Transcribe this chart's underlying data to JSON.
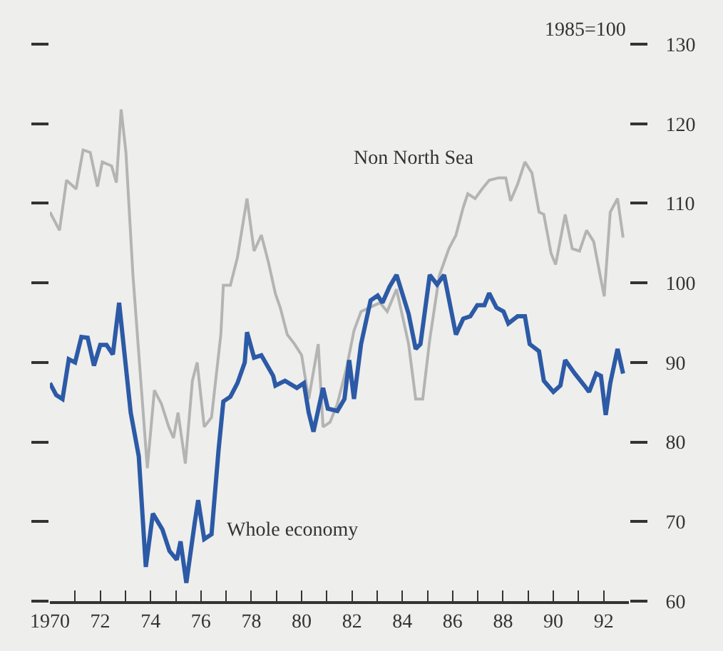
{
  "chart_data": {
    "type": "line",
    "annotations": [
      "1985=100"
    ],
    "xlim": [
      1970,
      1993
    ],
    "xticks": [
      1970,
      {
        "value": 1971,
        "label": null
      },
      {
        "value": 1972,
        "label": "72"
      },
      {
        "value": 1973,
        "label": null
      },
      {
        "value": 1974,
        "label": "74"
      },
      {
        "value": 1975,
        "label": null
      },
      {
        "value": 1976,
        "label": "76"
      },
      {
        "value": 1977,
        "label": null
      },
      {
        "value": 1978,
        "label": "78"
      },
      {
        "value": 1979,
        "label": null
      },
      {
        "value": 1980,
        "label": "80"
      },
      {
        "value": 1981,
        "label": null
      },
      {
        "value": 1982,
        "label": "82"
      },
      {
        "value": 1983,
        "label": null
      },
      {
        "value": 1984,
        "label": "84"
      },
      {
        "value": 1985,
        "label": null
      },
      {
        "value": 1986,
        "label": "86"
      },
      {
        "value": 1987,
        "label": null
      },
      {
        "value": 1988,
        "label": "88"
      },
      {
        "value": 1989,
        "label": null
      },
      {
        "value": 1990,
        "label": "90"
      },
      {
        "value": 1991,
        "label": null
      },
      {
        "value": 1992,
        "label": "92"
      }
    ],
    "ylim": [
      60,
      130
    ],
    "yticks": [
      60,
      70,
      80,
      90,
      100,
      110,
      120,
      130
    ],
    "grid": false,
    "legend": false,
    "marker": "none",
    "line_style": "solid",
    "series": [
      {
        "name": "Non North Sea",
        "color": "#b4b4b4",
        "x": [
          1970.0,
          1970.38,
          1970.66,
          1971.04,
          1971.32,
          1971.6,
          1971.89,
          1972.08,
          1972.45,
          1972.64,
          1972.83,
          1973.02,
          1973.3,
          1973.87,
          1974.15,
          1974.43,
          1974.72,
          1974.91,
          1975.09,
          1975.38,
          1975.66,
          1975.85,
          1976.13,
          1976.42,
          1976.79,
          1976.89,
          1977.17,
          1977.45,
          1977.83,
          1978.11,
          1978.4,
          1978.68,
          1978.96,
          1979.15,
          1979.43,
          1979.72,
          1980.0,
          1980.28,
          1980.66,
          1980.85,
          1981.13,
          1981.42,
          1981.79,
          1982.08,
          1982.36,
          1983.11,
          1983.4,
          1983.77,
          1984.25,
          1984.53,
          1984.81,
          1985.09,
          1985.47,
          1985.85,
          1986.13,
          1986.42,
          1986.6,
          1986.89,
          1987.17,
          1987.45,
          1987.83,
          1988.11,
          1988.3,
          1988.58,
          1988.87,
          1989.15,
          1989.43,
          1989.62,
          1989.91,
          1990.09,
          1990.47,
          1990.75,
          1991.04,
          1991.32,
          1991.6,
          1992.02,
          1992.26,
          1992.55,
          1992.77
        ],
        "values": [
          108.9,
          106.6,
          112.9,
          111.8,
          116.7,
          116.4,
          112.1,
          115.2,
          114.7,
          112.6,
          121.8,
          116.4,
          100.9,
          76.7,
          86.5,
          84.8,
          81.9,
          80.5,
          83.7,
          77.3,
          87.7,
          90.0,
          81.9,
          83.1,
          93.5,
          99.7,
          99.7,
          103.2,
          110.6,
          104.0,
          106.0,
          102.6,
          98.6,
          96.9,
          93.5,
          92.3,
          90.9,
          85.4,
          92.3,
          81.9,
          82.5,
          84.8,
          89.4,
          94.0,
          96.4,
          97.5,
          96.4,
          99.2,
          92.3,
          85.4,
          85.4,
          92.9,
          100.9,
          104.3,
          106.0,
          109.5,
          111.2,
          110.6,
          111.8,
          112.9,
          113.2,
          113.2,
          110.3,
          112.4,
          115.2,
          113.8,
          108.9,
          108.6,
          103.7,
          102.3,
          108.6,
          104.3,
          104.0,
          106.6,
          105.2,
          98.3,
          108.9,
          110.6,
          105.7
        ]
      },
      {
        "name": "Whole economy",
        "color": "#2c5aa6",
        "x": [
          1970.0,
          1970.25,
          1970.5,
          1970.75,
          1971.0,
          1971.25,
          1971.5,
          1971.75,
          1972.0,
          1972.25,
          1972.5,
          1972.75,
          1973.21,
          1973.53,
          1973.81,
          1974.09,
          1974.47,
          1974.75,
          1975.04,
          1975.19,
          1975.42,
          1975.75,
          1975.89,
          1976.13,
          1976.42,
          1976.7,
          1976.89,
          1977.17,
          1977.45,
          1977.74,
          1977.83,
          1978.11,
          1978.4,
          1978.87,
          1978.96,
          1979.34,
          1979.81,
          1980.09,
          1980.28,
          1980.47,
          1980.85,
          1981.04,
          1981.42,
          1981.7,
          1981.89,
          1982.08,
          1982.36,
          1982.74,
          1983.02,
          1983.21,
          1983.49,
          1983.77,
          1984.25,
          1984.53,
          1984.72,
          1985.09,
          1985.38,
          1985.66,
          1986.13,
          1986.42,
          1986.7,
          1986.98,
          1987.26,
          1987.45,
          1987.74,
          1988.02,
          1988.21,
          1988.58,
          1988.87,
          1989.06,
          1989.43,
          1989.62,
          1990.0,
          1990.28,
          1990.47,
          1990.85,
          1991.23,
          1991.42,
          1991.7,
          1991.89,
          1992.08,
          1992.26,
          1992.55,
          1992.77
        ],
        "values": [
          87.4,
          85.9,
          85.4,
          90.4,
          90.0,
          93.2,
          93.1,
          89.6,
          92.2,
          92.2,
          91.0,
          97.5,
          83.7,
          78.2,
          64.3,
          71.0,
          69.0,
          66.3,
          65.2,
          67.5,
          62.3,
          69.8,
          72.7,
          67.8,
          68.4,
          79.0,
          85.1,
          85.7,
          87.4,
          90.0,
          93.8,
          90.6,
          90.9,
          88.3,
          87.1,
          87.7,
          86.8,
          87.4,
          83.7,
          81.3,
          86.8,
          84.2,
          83.9,
          85.4,
          90.3,
          85.4,
          92.3,
          97.8,
          98.4,
          97.5,
          99.5,
          101.0,
          96.1,
          91.7,
          92.3,
          101.0,
          99.8,
          101.0,
          93.5,
          95.5,
          95.8,
          97.2,
          97.2,
          98.7,
          96.9,
          96.4,
          94.9,
          95.8,
          95.8,
          92.3,
          91.4,
          87.7,
          86.3,
          87.1,
          90.3,
          88.6,
          87.1,
          86.3,
          88.6,
          88.3,
          83.4,
          87.4,
          91.7,
          88.6
        ]
      }
    ]
  }
}
